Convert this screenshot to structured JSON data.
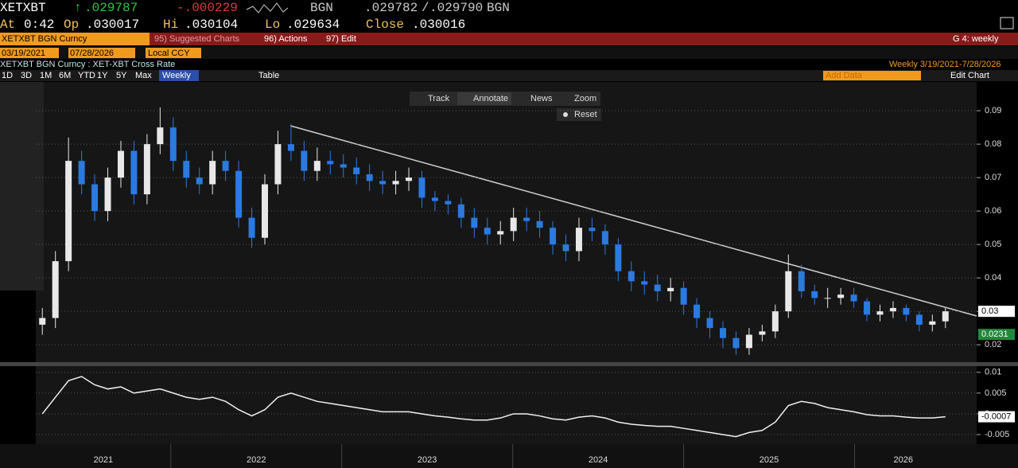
{
  "header": {
    "ticker": "XETXBT",
    "last": ".029787",
    "change": "-.000229",
    "source": "BGN",
    "bid": ".029782",
    "ask": ".029790",
    "time_label": "At",
    "time": "0:42",
    "open_label": "Op",
    "open": ".030017",
    "high_label": "Hi",
    "high": ".030104",
    "low_label": "Lo",
    "low": ".029634",
    "close_label": "Close",
    "close": ".030016"
  },
  "menu": {
    "security": "XETXBT BGN Curncy",
    "items": [
      "95) Suggested Charts",
      "96) Actions",
      "97) Edit"
    ],
    "page": "G 4: weekly"
  },
  "range": {
    "start": "03/19/2021",
    "end": "07/28/2026",
    "currency": "Local CCY"
  },
  "chart_title": "XETXBT BGN Curncy : XET-XBT Cross Rate",
  "period_info": "Weekly   3/19/2021-7/28/2026",
  "toolbar": {
    "periods": [
      "1D",
      "3D",
      "1M",
      "6M",
      "YTD",
      "1Y",
      "5Y",
      "Max"
    ],
    "frequency": "Weekly",
    "table": "Table",
    "add_data": "Add Data",
    "edit_chart": "Edit Chart"
  },
  "chart_tools": [
    "Track",
    "Annotate",
    "News",
    "Zoom"
  ],
  "reset": "Reset",
  "chart_data": [
    {
      "type": "candlestick",
      "up_color": "#e8e8e8",
      "down_color": "#2a7ae2",
      "xlim": [
        2021.21,
        2026.57
      ],
      "xticks": [
        2021,
        2022,
        2023,
        2024,
        2025,
        2026
      ],
      "ylim": [
        0.0148,
        0.0986
      ],
      "yticks": [
        0.02,
        0.03,
        0.04,
        0.05,
        0.06,
        0.07,
        0.08,
        0.09
      ],
      "grid": true,
      "open": [
        0.026,
        0.028,
        0.045,
        0.075,
        0.068,
        0.06,
        0.07,
        0.078,
        0.065,
        0.08,
        0.085,
        0.075,
        0.07,
        0.068,
        0.075,
        0.072,
        0.058,
        0.052,
        0.068,
        0.08,
        0.078,
        0.072,
        0.075,
        0.074,
        0.073,
        0.071,
        0.069,
        0.068,
        0.069,
        0.07,
        0.064,
        0.063,
        0.062,
        0.058,
        0.055,
        0.053,
        0.054,
        0.058,
        0.057,
        0.055,
        0.05,
        0.048,
        0.055,
        0.054,
        0.05,
        0.042,
        0.039,
        0.038,
        0.036,
        0.037,
        0.032,
        0.028,
        0.025,
        0.022,
        0.019,
        0.023,
        0.024,
        0.03,
        0.042,
        0.036,
        0.034,
        0.034,
        0.035,
        0.033,
        0.029,
        0.03,
        0.031,
        0.029,
        0.026,
        0.027
      ],
      "high": [
        0.031,
        0.048,
        0.082,
        0.078,
        0.071,
        0.073,
        0.081,
        0.081,
        0.083,
        0.091,
        0.088,
        0.078,
        0.073,
        0.078,
        0.078,
        0.075,
        0.061,
        0.071,
        0.084,
        0.086,
        0.081,
        0.079,
        0.078,
        0.077,
        0.076,
        0.074,
        0.072,
        0.072,
        0.073,
        0.072,
        0.066,
        0.065,
        0.064,
        0.061,
        0.058,
        0.057,
        0.061,
        0.061,
        0.06,
        0.057,
        0.053,
        0.058,
        0.058,
        0.056,
        0.052,
        0.045,
        0.042,
        0.041,
        0.04,
        0.039,
        0.034,
        0.03,
        0.027,
        0.024,
        0.025,
        0.026,
        0.032,
        0.047,
        0.044,
        0.038,
        0.037,
        0.037,
        0.037,
        0.034,
        0.032,
        0.033,
        0.032,
        0.03,
        0.029,
        0.031
      ],
      "low": [
        0.023,
        0.025,
        0.042,
        0.065,
        0.057,
        0.057,
        0.067,
        0.062,
        0.062,
        0.077,
        0.072,
        0.067,
        0.065,
        0.065,
        0.069,
        0.055,
        0.049,
        0.05,
        0.065,
        0.075,
        0.069,
        0.069,
        0.071,
        0.07,
        0.068,
        0.066,
        0.065,
        0.065,
        0.066,
        0.061,
        0.06,
        0.059,
        0.055,
        0.052,
        0.05,
        0.05,
        0.051,
        0.054,
        0.052,
        0.047,
        0.045,
        0.045,
        0.051,
        0.047,
        0.039,
        0.036,
        0.035,
        0.033,
        0.033,
        0.029,
        0.025,
        0.022,
        0.019,
        0.017,
        0.017,
        0.021,
        0.022,
        0.028,
        0.034,
        0.032,
        0.031,
        0.032,
        0.031,
        0.027,
        0.027,
        0.028,
        0.027,
        0.024,
        0.024,
        0.025
      ],
      "close": [
        0.028,
        0.045,
        0.075,
        0.068,
        0.06,
        0.07,
        0.078,
        0.065,
        0.08,
        0.085,
        0.075,
        0.07,
        0.068,
        0.075,
        0.072,
        0.058,
        0.052,
        0.068,
        0.08,
        0.078,
        0.072,
        0.075,
        0.074,
        0.073,
        0.071,
        0.069,
        0.068,
        0.069,
        0.07,
        0.064,
        0.063,
        0.062,
        0.058,
        0.055,
        0.053,
        0.054,
        0.058,
        0.057,
        0.055,
        0.05,
        0.048,
        0.055,
        0.054,
        0.05,
        0.042,
        0.039,
        0.038,
        0.036,
        0.037,
        0.032,
        0.028,
        0.025,
        0.022,
        0.019,
        0.023,
        0.024,
        0.03,
        0.042,
        0.036,
        0.034,
        0.034,
        0.035,
        0.033,
        0.029,
        0.03,
        0.031,
        0.029,
        0.026,
        0.027,
        0.03
      ],
      "price_tags": [
        {
          "value": 0.03,
          "label": "0.03",
          "color": "#ffffff"
        },
        {
          "value": 0.0231,
          "label": "0.0231",
          "color": "#1f8a3a"
        }
      ]
    },
    {
      "type": "line",
      "color": "#f0f0f0",
      "ylim": [
        -0.0073,
        0.0115
      ],
      "yticks": [
        0.01,
        0.005,
        0,
        -0.005
      ],
      "grid": true,
      "values": [
        0,
        0.004,
        0.008,
        0.009,
        0.007,
        0.006,
        0.0065,
        0.005,
        0.0055,
        0.006,
        0.005,
        0.004,
        0.0035,
        0.004,
        0.003,
        0.001,
        -0.0005,
        0.001,
        0.004,
        0.005,
        0.004,
        0.003,
        0.0025,
        0.002,
        0.0015,
        0.001,
        0.0005,
        0.0005,
        0.0005,
        0,
        -0.0005,
        -0.0008,
        -0.0012,
        -0.0015,
        -0.0015,
        -0.001,
        0,
        0,
        -0.0005,
        -0.0012,
        -0.0015,
        -0.0008,
        -0.0005,
        -0.001,
        -0.002,
        -0.0025,
        -0.0028,
        -0.003,
        -0.003,
        -0.0035,
        -0.004,
        -0.0045,
        -0.005,
        -0.0055,
        -0.0045,
        -0.004,
        -0.002,
        0.002,
        0.003,
        0.0025,
        0.0015,
        0.001,
        0.0005,
        -0.0002,
        -0.0005,
        -0.0005,
        -0.0008,
        -0.001,
        -0.001,
        -0.0007
      ],
      "price_tags": [
        {
          "value": -0.0007,
          "label": "-0.0007",
          "color": "#ffffff"
        }
      ]
    }
  ]
}
